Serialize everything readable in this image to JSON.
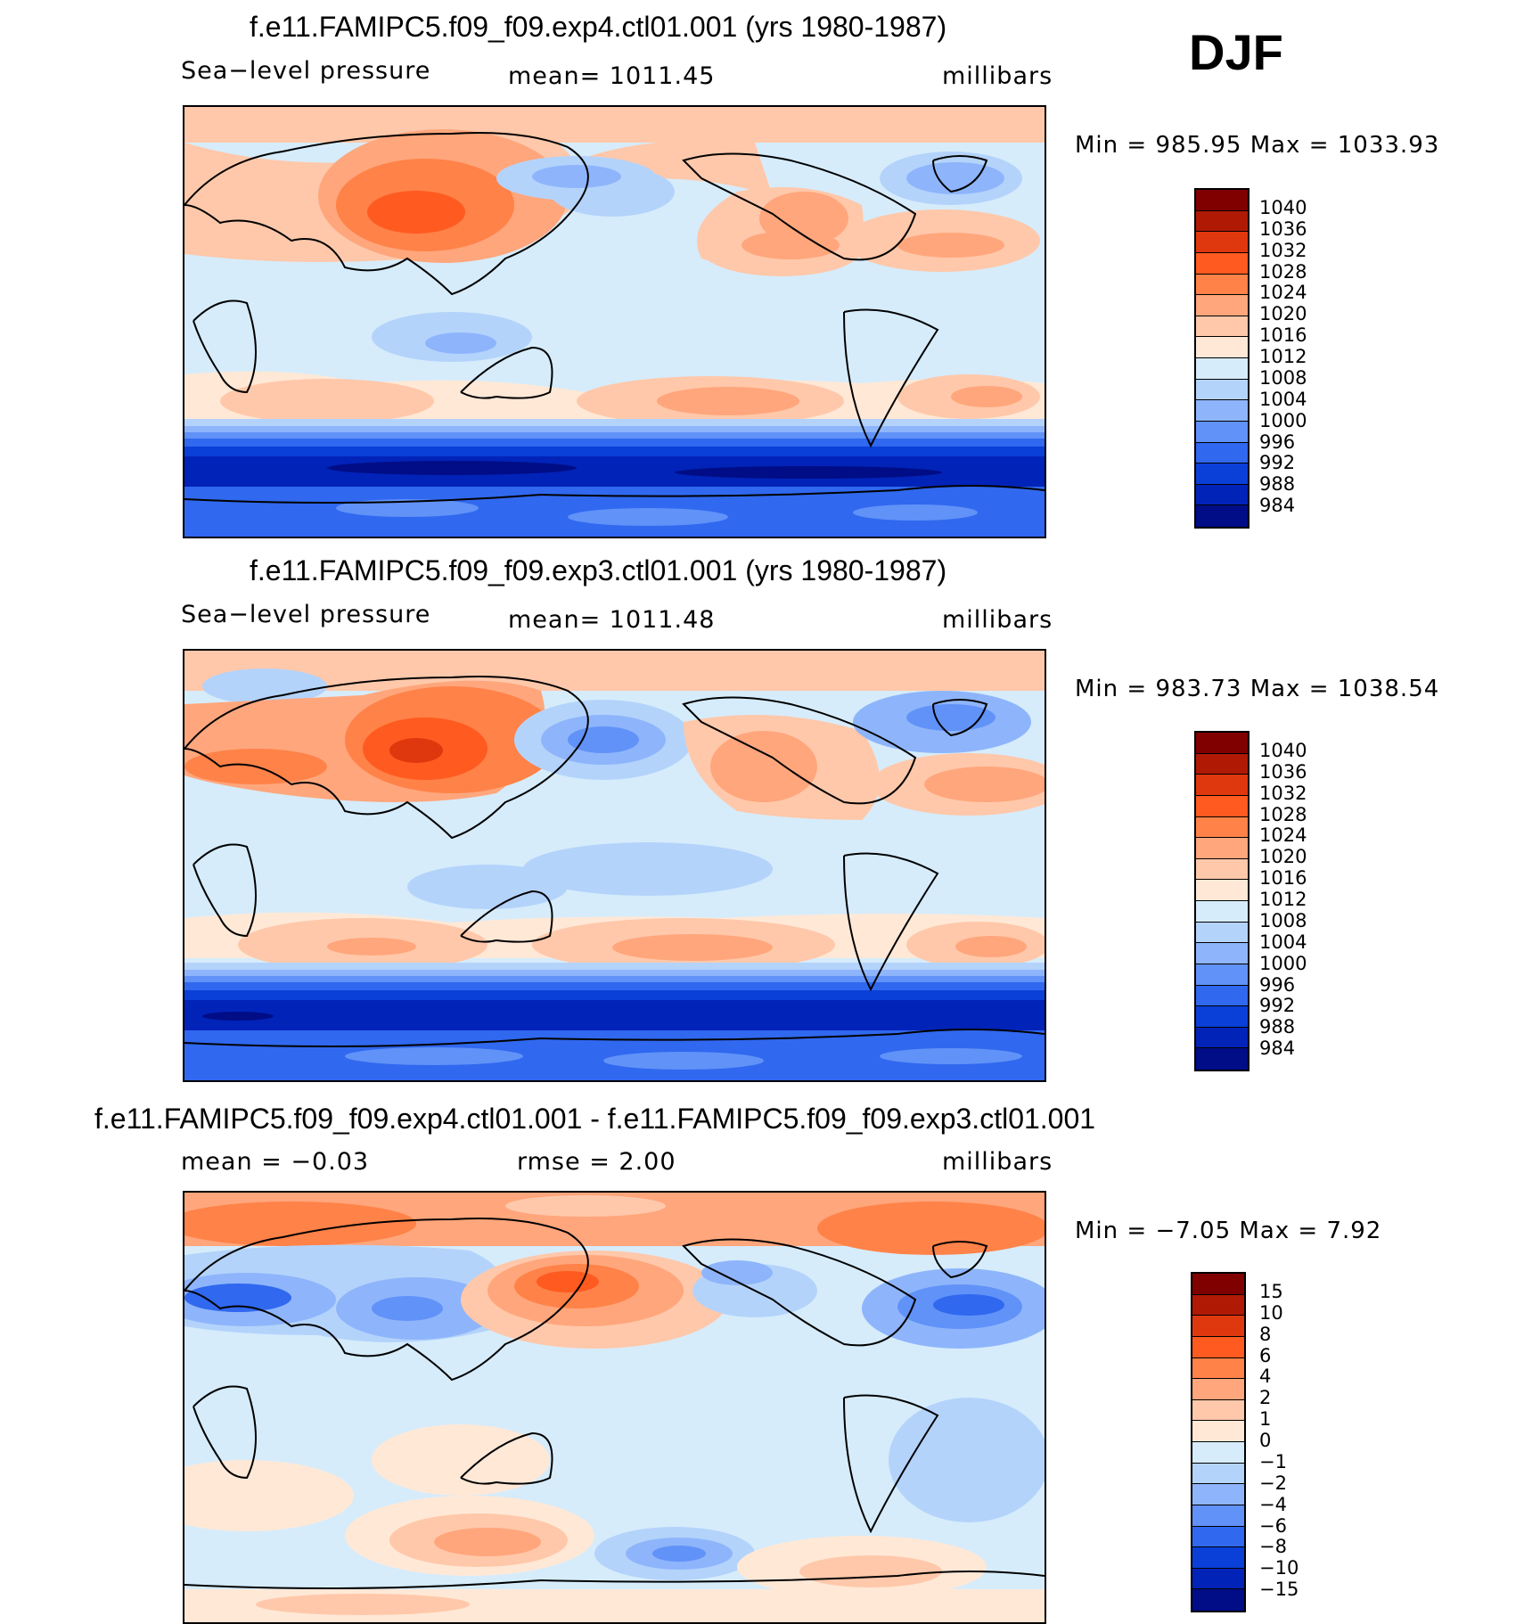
{
  "season": "DJF",
  "panels": [
    {
      "title": "f.e11.FAMIPC5.f09_f09.exp4.ctl01.001 (yrs 1980-1987)",
      "left_label": "Sea−level pressure",
      "center_label": "mean=  1011.45",
      "units": "millibars",
      "minmax": "Min  =  985.95  Max  =  1033.93",
      "levels": [
        "1040",
        "1036",
        "1032",
        "1028",
        "1024",
        "1020",
        "1016",
        "1012",
        "1008",
        "1004",
        "1000",
        "996",
        "992",
        "988",
        "984"
      ],
      "colors": [
        "#800000",
        "#b01a05",
        "#e0380e",
        "#ff5a1f",
        "#ff8248",
        "#ffa67c",
        "#ffc8aa",
        "#ffe8d6",
        "#d6ecfb",
        "#b4d3fb",
        "#8eb5fb",
        "#6192f8",
        "#3068ef",
        "#0a3fd8",
        "#0223b8",
        "#000d86"
      ]
    },
    {
      "title": "f.e11.FAMIPC5.f09_f09.exp3.ctl01.001 (yrs 1980-1987)",
      "left_label": "Sea−level pressure",
      "center_label": "mean=  1011.48",
      "units": "millibars",
      "minmax": "Min  =  983.73  Max  =  1038.54",
      "levels": [
        "1040",
        "1036",
        "1032",
        "1028",
        "1024",
        "1020",
        "1016",
        "1012",
        "1008",
        "1004",
        "1000",
        "996",
        "992",
        "988",
        "984"
      ],
      "colors": [
        "#800000",
        "#b01a05",
        "#e0380e",
        "#ff5a1f",
        "#ff8248",
        "#ffa67c",
        "#ffc8aa",
        "#ffe8d6",
        "#d6ecfb",
        "#b4d3fb",
        "#8eb5fb",
        "#6192f8",
        "#3068ef",
        "#0a3fd8",
        "#0223b8",
        "#000d86"
      ]
    },
    {
      "title": "f.e11.FAMIPC5.f09_f09.exp4.ctl01.001 - f.e11.FAMIPC5.f09_f09.exp3.ctl01.001",
      "left_label": "mean  =    −0.03",
      "center_label": "rmse  =     2.00",
      "units": "millibars",
      "minmax": "Min  =    −7.05  Max  =      7.92",
      "levels": [
        "15",
        "10",
        "8",
        "6",
        "4",
        "2",
        "1",
        "0",
        "−1",
        "−2",
        "−4",
        "−6",
        "−8",
        "−10",
        "−15"
      ],
      "colors": [
        "#800000",
        "#b01a05",
        "#e0380e",
        "#ff5a1f",
        "#ff8248",
        "#ffa67c",
        "#ffc8aa",
        "#ffe8d6",
        "#d6ecfb",
        "#b4d3fb",
        "#8eb5fb",
        "#6192f8",
        "#3068ef",
        "#0a3fd8",
        "#0223b8",
        "#000d86"
      ]
    }
  ]
}
